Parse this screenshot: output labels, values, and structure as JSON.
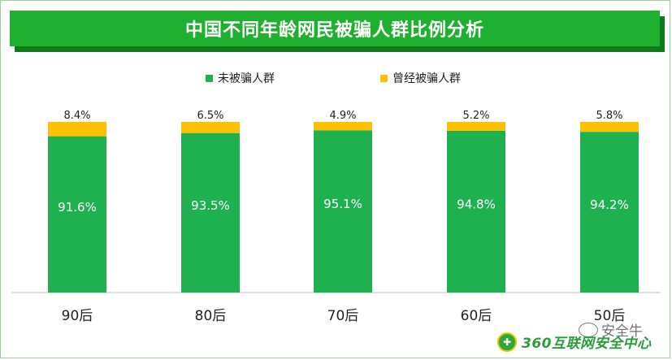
{
  "header": {
    "title": "中国不同年龄网民被骗人群比例分析"
  },
  "legend": {
    "items": [
      {
        "label": "未被骗人群",
        "color": "#1fb050"
      },
      {
        "label": "曾经被骗人群",
        "color": "#ffc000"
      }
    ]
  },
  "chart_data": {
    "type": "bar",
    "stacked": true,
    "percent_stacked": true,
    "categories": [
      "90后",
      "80后",
      "70后",
      "60后",
      "50后"
    ],
    "series": [
      {
        "name": "未被骗人群",
        "values": [
          91.6,
          93.5,
          95.1,
          94.8,
          94.2
        ],
        "labels": [
          "91.6%",
          "93.5%",
          "95.1%",
          "94.8%",
          "94.2%"
        ],
        "color": "#1fb050"
      },
      {
        "name": "曾经被骗人群",
        "values": [
          8.4,
          6.5,
          4.9,
          5.2,
          5.8
        ],
        "labels": [
          "8.4%",
          "6.5%",
          "4.9%",
          "5.2%",
          "5.8%"
        ],
        "color": "#ffc000"
      }
    ],
    "ylim": [
      0,
      100
    ],
    "grid": false,
    "legend_position": "top"
  },
  "footer": {
    "logo_text": "360互联网安全中心",
    "watermark": "安全牛"
  }
}
